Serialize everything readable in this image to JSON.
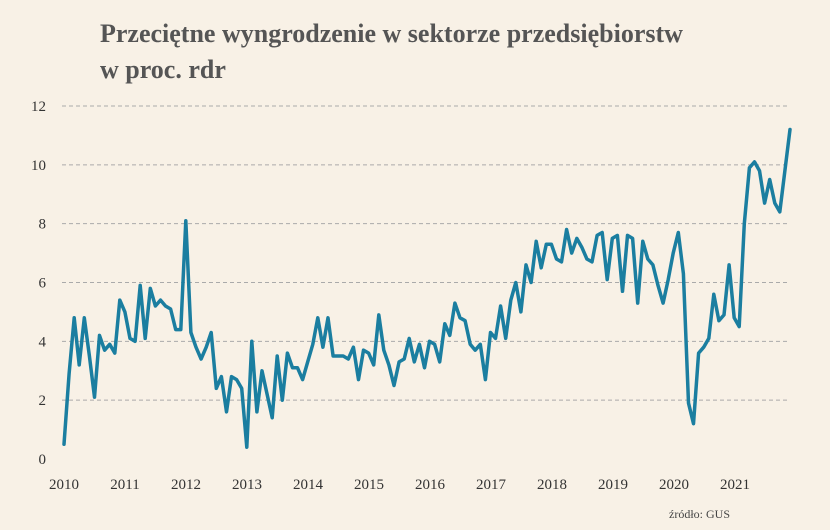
{
  "title_line1": "Przeciętne wyngrodzenie w sektorze przedsiębiorstw",
  "title_line2": "w proc. rdr",
  "source": "źródło: GUS",
  "colors": {
    "line": "#1b7ea0",
    "grid": "#aaaaaa",
    "background": "#f8f1e6"
  },
  "chart_data": {
    "type": "line",
    "title": "Przeciętne wyngrodzenie w sektorze przedsiębiorstw w proc. rdr",
    "xlabel": "",
    "ylabel": "",
    "ylim": [
      0,
      12
    ],
    "xlim": [
      2010,
      2022
    ],
    "y_ticks": [
      "0",
      "2",
      "4",
      "6",
      "8",
      "10",
      "12"
    ],
    "x_ticks": [
      "2010",
      "2011",
      "2012",
      "2013",
      "2014",
      "2015",
      "2016",
      "2017",
      "2018",
      "2019",
      "2020",
      "2021"
    ],
    "grid": "horizontal dashed",
    "frequency": "monthly, Jan 2010 – Dec 2021",
    "series": [
      {
        "values": [
          0.5,
          2.9,
          4.8,
          3.2,
          4.8,
          3.5,
          2.1,
          4.2,
          3.7,
          3.9,
          3.6,
          5.4,
          5.0,
          4.1,
          4.0,
          5.9,
          4.1,
          5.8,
          5.2,
          5.4,
          5.2,
          5.1,
          4.4,
          4.4,
          8.1,
          4.3,
          3.8,
          3.4,
          3.8,
          4.3,
          2.4,
          2.8,
          1.6,
          2.8,
          2.7,
          2.4,
          0.4,
          4.0,
          1.6,
          3.0,
          2.2,
          1.4,
          3.5,
          2.0,
          3.6,
          3.1,
          3.1,
          2.7,
          3.3,
          3.9,
          4.8,
          3.8,
          4.8,
          3.5,
          3.5,
          3.5,
          3.4,
          3.8,
          2.7,
          3.7,
          3.6,
          3.2,
          4.9,
          3.7,
          3.2,
          2.5,
          3.3,
          3.4,
          4.1,
          3.3,
          3.9,
          3.1,
          4.0,
          3.9,
          3.3,
          4.6,
          4.2,
          5.3,
          4.8,
          4.7,
          3.9,
          3.7,
          3.9,
          2.7,
          4.3,
          4.1,
          5.2,
          4.1,
          5.4,
          6.0,
          5.0,
          6.6,
          6.0,
          7.4,
          6.5,
          7.3,
          7.3,
          6.8,
          6.7,
          7.8,
          7.0,
          7.5,
          7.2,
          6.8,
          6.7,
          7.6,
          7.7,
          6.1,
          7.5,
          7.6,
          5.7,
          7.6,
          7.5,
          5.3,
          7.4,
          6.8,
          6.6,
          5.9,
          5.3,
          6.1,
          7.0,
          7.7,
          6.3,
          1.9,
          1.2,
          3.6,
          3.8,
          4.1,
          5.6,
          4.7,
          4.9,
          6.6,
          4.8,
          4.5,
          8.0,
          9.9,
          10.1,
          9.8,
          8.7,
          9.5,
          8.7,
          8.4,
          9.8,
          11.2
        ]
      }
    ]
  }
}
